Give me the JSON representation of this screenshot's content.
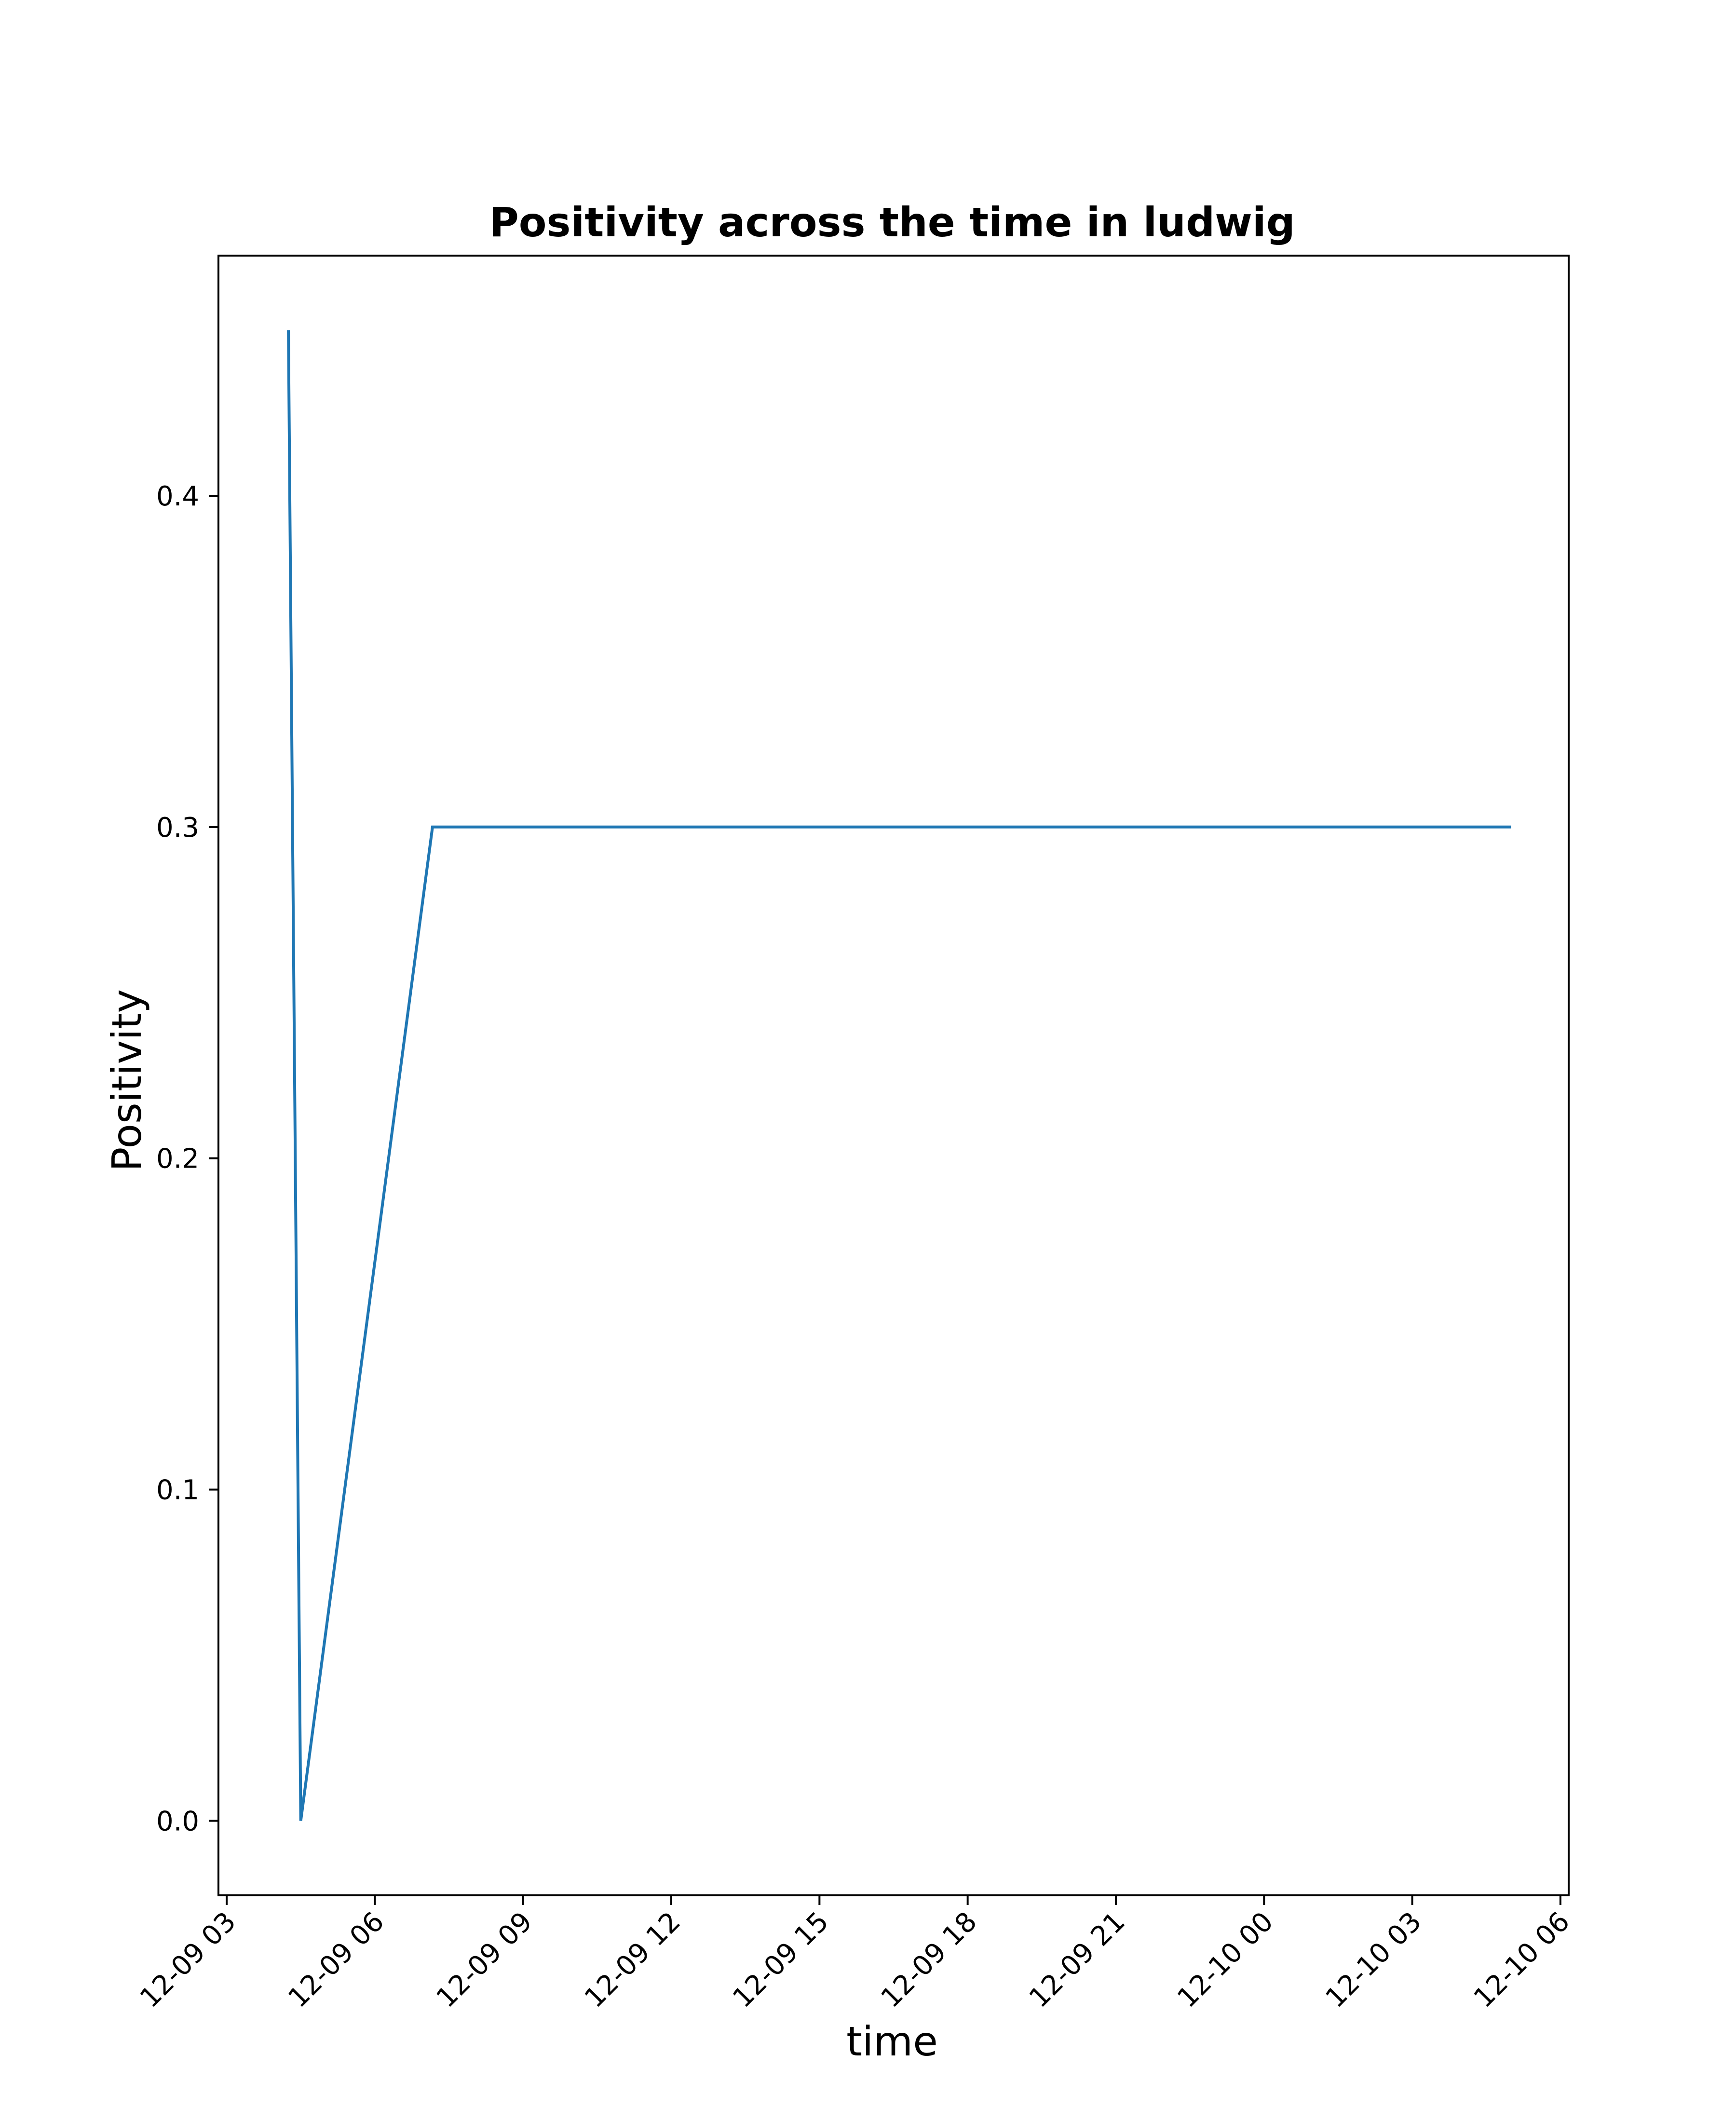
{
  "chart_data": {
    "type": "line",
    "title": "Positivity across the time in ludwig",
    "xlabel": "time",
    "ylabel": "Positivity",
    "x_ticks": [
      "12-09 03",
      "12-09 06",
      "12-09 09",
      "12-09 12",
      "12-09 15",
      "12-09 18",
      "12-09 21",
      "12-10 00",
      "12-10 03",
      "12-10 06"
    ],
    "x_tick_values": [
      "2023-12-09 03:00",
      "2023-12-09 06:00",
      "2023-12-09 09:00",
      "2023-12-09 12:00",
      "2023-12-09 15:00",
      "2023-12-09 18:00",
      "2023-12-09 21:00",
      "2023-12-10 00:00",
      "2023-12-10 03:00",
      "2023-12-10 06:00"
    ],
    "xlim": [
      "2023-12-09 02:50",
      "2023-12-10 06:10"
    ],
    "y_ticks": [
      "0.0",
      "0.1",
      "0.2",
      "0.3",
      "0.4"
    ],
    "y_tick_values": [
      0.0,
      0.1,
      0.2,
      0.3,
      0.4
    ],
    "ylim": [
      -0.0225,
      0.4725
    ],
    "grid": false,
    "color": "#1f77b4",
    "series": [
      {
        "x": [
          "2023-12-09 04:15",
          "2023-12-09 04:30",
          "2023-12-09 07:10",
          "2023-12-10 05:00"
        ],
        "y": [
          0.45,
          0.0,
          0.3,
          0.3
        ]
      }
    ]
  }
}
